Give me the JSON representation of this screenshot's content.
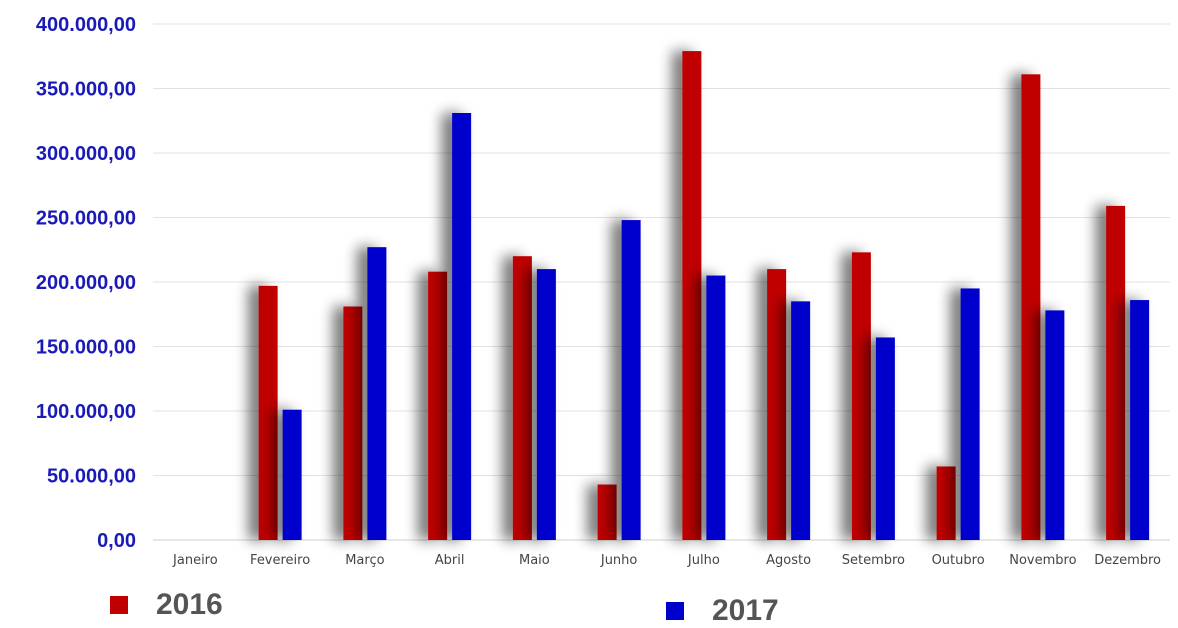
{
  "chart_data": {
    "type": "bar",
    "categories": [
      "Janeiro",
      "Fevereiro",
      "Março",
      "Abril",
      "Maio",
      "Junho",
      "Julho",
      "Agosto",
      "Setembro",
      "Outubro",
      "Novembro",
      "Dezembro"
    ],
    "series": [
      {
        "name": "2016",
        "color": "#c00000",
        "values": [
          0,
          197000,
          181000,
          208000,
          220000,
          43000,
          379000,
          210000,
          223000,
          57000,
          361000,
          259000
        ]
      },
      {
        "name": "2017",
        "color": "#0000cc",
        "values": [
          0,
          101000,
          227000,
          331000,
          210000,
          248000,
          205000,
          185000,
          157000,
          195000,
          178000,
          186000
        ]
      }
    ],
    "ylim": [
      0,
      400000
    ],
    "yticks": [
      {
        "value": 0,
        "label": "0,00"
      },
      {
        "value": 50000,
        "label": "50.000,00"
      },
      {
        "value": 100000,
        "label": "100.000,00"
      },
      {
        "value": 150000,
        "label": "150.000,00"
      },
      {
        "value": 200000,
        "label": "200.000,00"
      },
      {
        "value": 250000,
        "label": "250.000,00"
      },
      {
        "value": 300000,
        "label": "300.000,00"
      },
      {
        "value": 350000,
        "label": "350.000,00"
      },
      {
        "value": 400000,
        "label": "400.000,00"
      }
    ],
    "ytick_color": "#1a1ab8",
    "grid": true,
    "legend_position": "bottom"
  }
}
